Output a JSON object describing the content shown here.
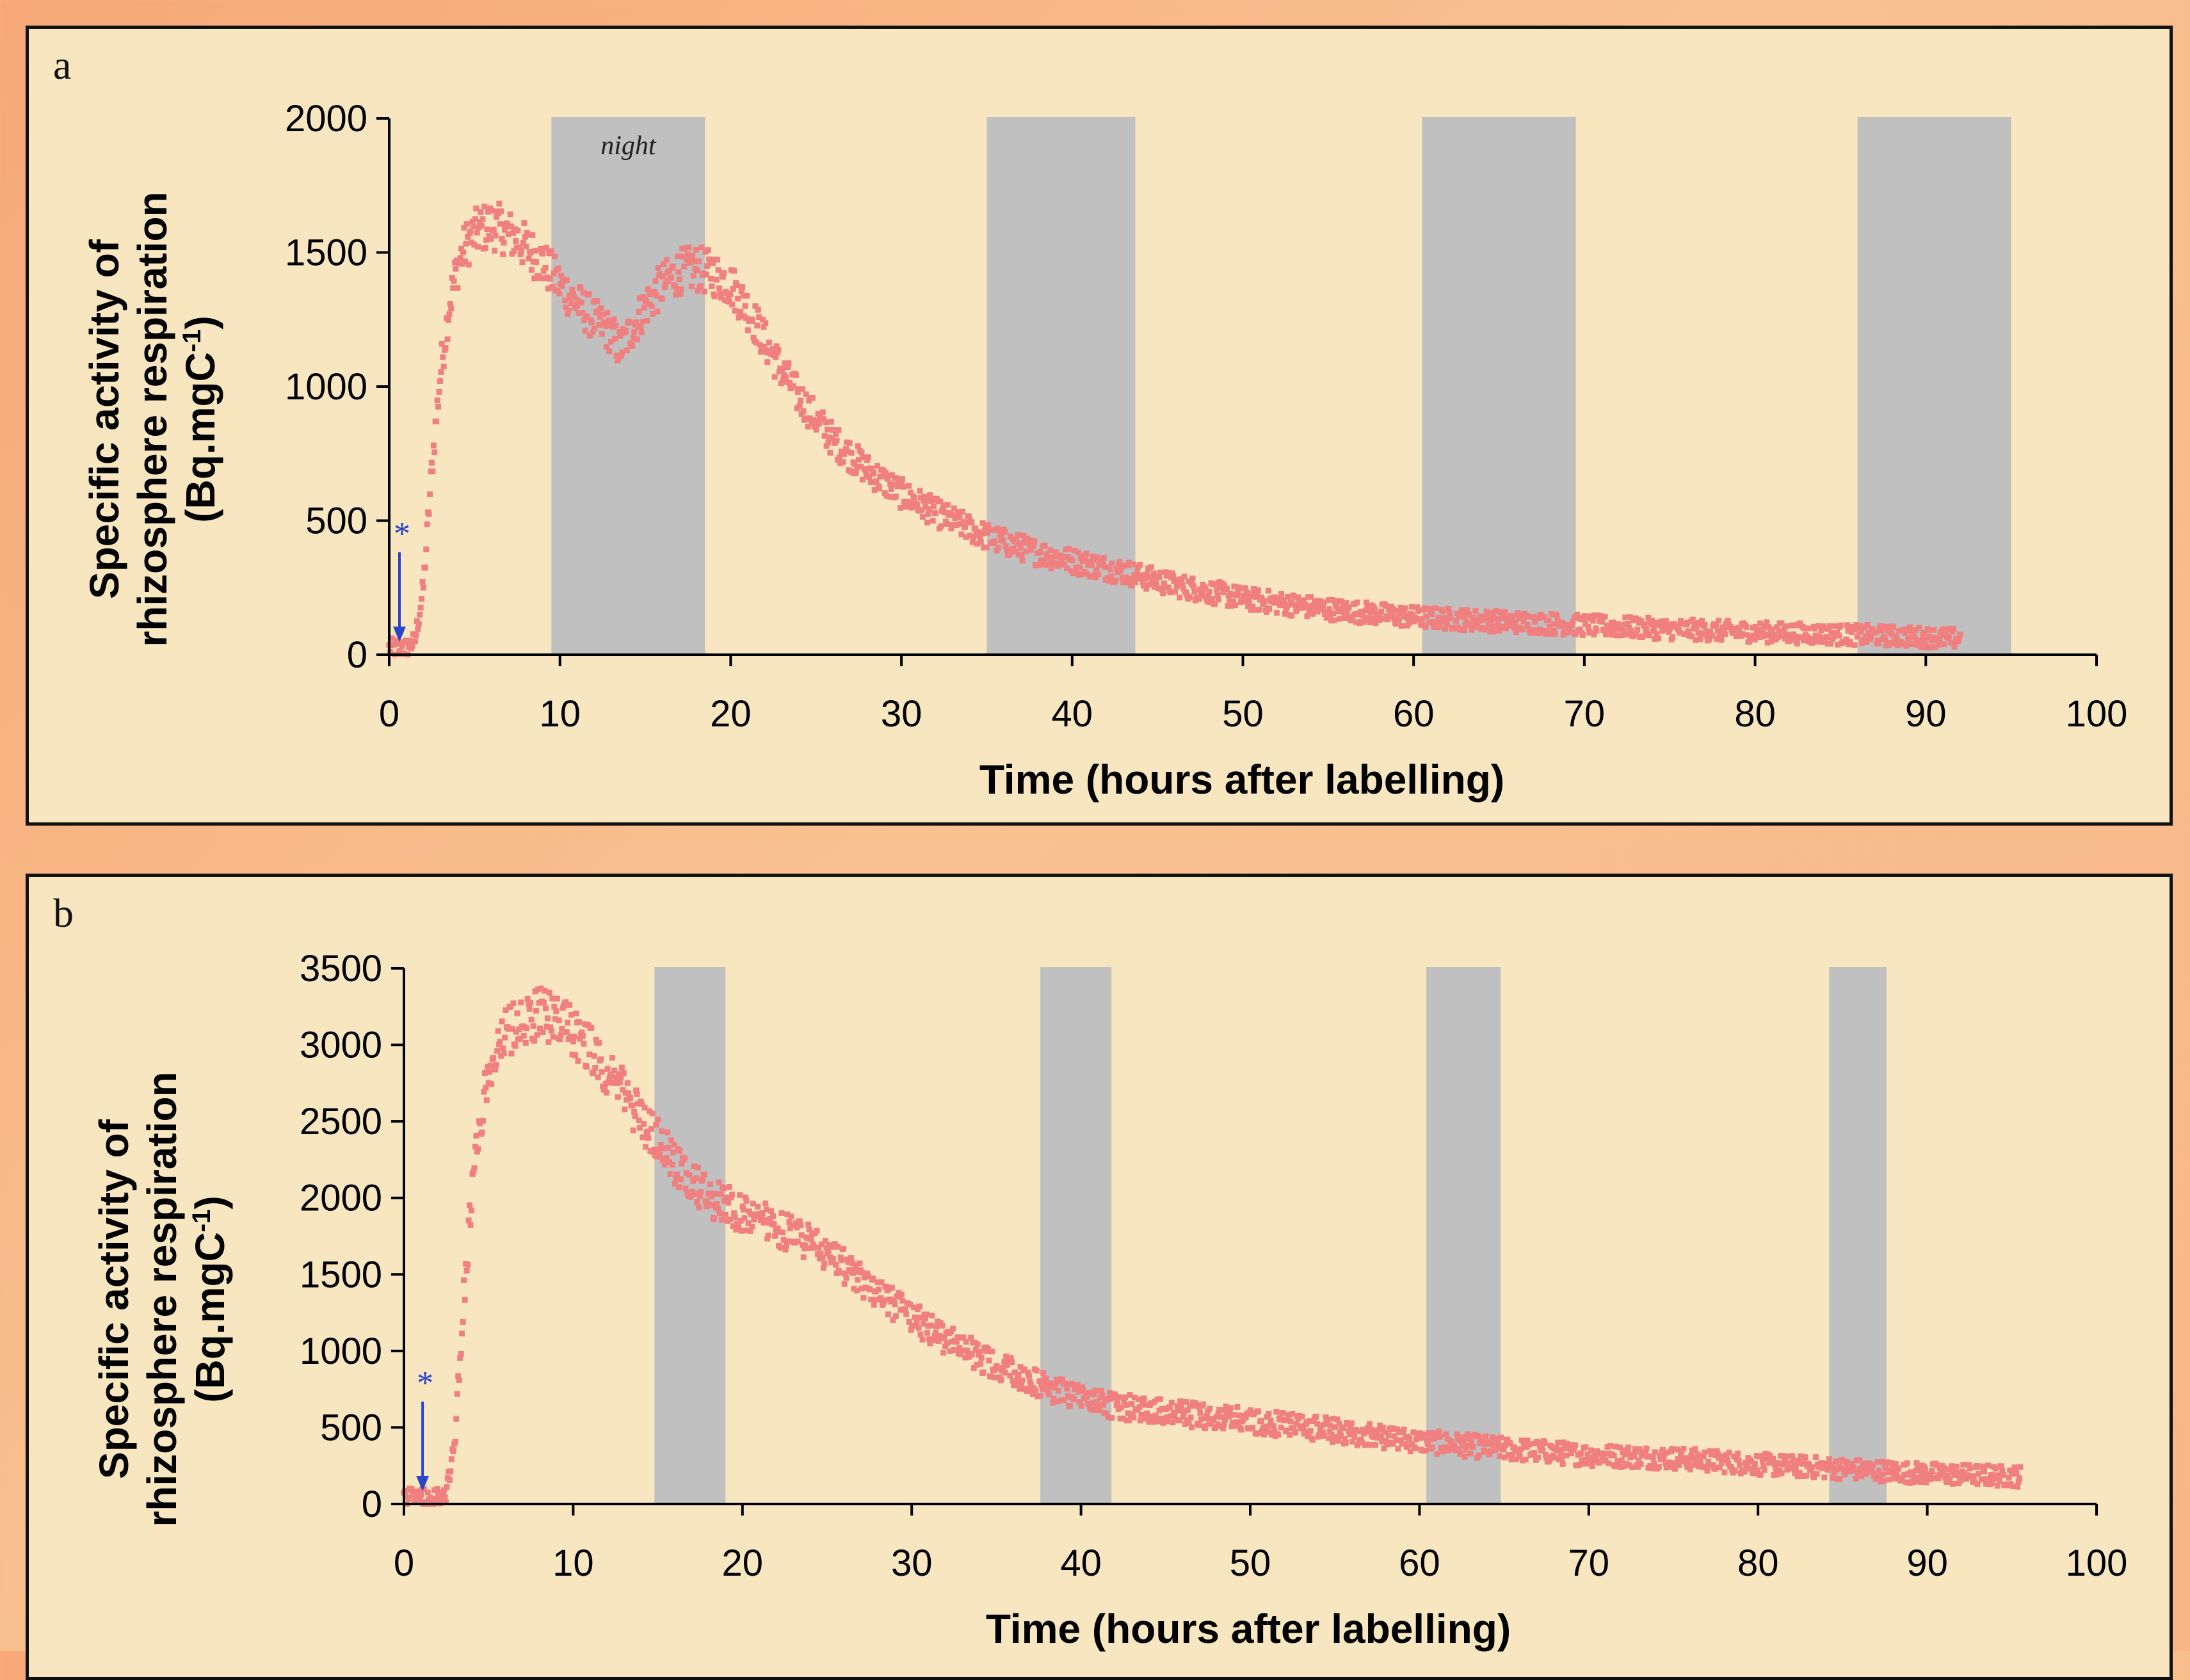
{
  "colors": {
    "points": "#f08080",
    "night_band": "#c0c0c0",
    "axis": "#000000",
    "marker": "#2a45c8",
    "panel_bg": "#f8e6c0"
  },
  "chart_data": [
    {
      "type": "scatter",
      "panel_label": "a",
      "xlabel": "Time (hours after labelling)",
      "ylabel_line1": "Specific activity of",
      "ylabel_line2": "rhizosphere respiration",
      "ylabel_unit_prefix": "(Bq.mgC",
      "ylabel_unit_sup": "-1",
      "ylabel_unit_suffix": ")",
      "xlim": [
        0,
        100
      ],
      "ylim": [
        0,
        2000
      ],
      "x_ticks": [
        "0",
        "10",
        "20",
        "30",
        "40",
        "50",
        "60",
        "70",
        "80",
        "90",
        "100"
      ],
      "y_ticks": [
        "0",
        "500",
        "1000",
        "1500",
        "2000"
      ],
      "night_label": "night",
      "marker_label": "*",
      "marker_x": 0.3,
      "night_bands": [
        [
          9.5,
          18.5
        ],
        [
          35,
          43.7
        ],
        [
          60.5,
          69.5
        ],
        [
          86,
          95
        ]
      ],
      "series": [
        {
          "x": [
            0,
            1,
            1.5,
            2,
            2.5,
            3,
            3.5,
            4,
            4.5,
            5,
            5.5,
            6,
            6.5,
            7,
            7.5,
            8,
            9,
            10,
            11,
            12,
            13,
            13.5,
            14,
            15,
            16,
            17,
            18,
            19,
            20,
            21,
            22,
            23,
            24,
            25,
            26,
            28,
            30,
            32,
            35,
            38,
            40,
            43,
            46,
            50,
            55,
            60,
            65,
            70,
            75,
            80,
            85,
            88,
            90,
            92
          ],
          "y": [
            25,
            25,
            50,
            250,
            700,
            1050,
            1300,
            1450,
            1530,
            1570,
            1590,
            1600,
            1590,
            1570,
            1550,
            1520,
            1460,
            1380,
            1310,
            1250,
            1200,
            1140,
            1190,
            1300,
            1380,
            1430,
            1440,
            1420,
            1380,
            1290,
            1170,
            1060,
            960,
            880,
            800,
            690,
            600,
            530,
            440,
            380,
            350,
            310,
            260,
            210,
            170,
            140,
            125,
            110,
            95,
            85,
            75,
            70,
            65,
            60
          ]
        }
      ]
    },
    {
      "type": "scatter",
      "panel_label": "b",
      "xlabel": "Time (hours after labelling)",
      "ylabel_line1": "Specific activity of",
      "ylabel_line2": "rhizosphere respiration",
      "ylabel_unit_prefix": "(Bq.mgC",
      "ylabel_unit_sup": "-1",
      "ylabel_unit_suffix": ")",
      "xlim": [
        0,
        100
      ],
      "ylim": [
        0,
        3500
      ],
      "x_ticks": [
        "0",
        "10",
        "20",
        "30",
        "40",
        "50",
        "60",
        "70",
        "80",
        "90",
        "100"
      ],
      "y_ticks": [
        "0",
        "500",
        "1000",
        "1500",
        "2000",
        "2500",
        "3000",
        "3500"
      ],
      "marker_label": "*",
      "marker_x": 0.8,
      "night_bands": [
        [
          14.8,
          19
        ],
        [
          37.6,
          41.8
        ],
        [
          60.4,
          64.8
        ],
        [
          84.2,
          87.6
        ]
      ],
      "series": [
        {
          "x": [
            0,
            1,
            2,
            2.5,
            3,
            3.5,
            4,
            4.5,
            5,
            5.5,
            6,
            6.5,
            7,
            7.5,
            8,
            9,
            10,
            11,
            12,
            13,
            14,
            15,
            16,
            17,
            18,
            20,
            22,
            24,
            26,
            28,
            30,
            32,
            34,
            36,
            38,
            40,
            42,
            45,
            48,
            50,
            55,
            60,
            65,
            70,
            75,
            80,
            85,
            90,
            95.5
          ],
          "y": [
            40,
            40,
            40,
            80,
            400,
            1300,
            2000,
            2500,
            2800,
            2960,
            3060,
            3130,
            3170,
            3190,
            3200,
            3160,
            3080,
            2960,
            2830,
            2680,
            2520,
            2370,
            2230,
            2110,
            2010,
            1900,
            1810,
            1700,
            1550,
            1370,
            1220,
            1080,
            960,
            860,
            760,
            690,
            640,
            600,
            570,
            540,
            480,
            410,
            360,
            320,
            300,
            260,
            230,
            200,
            180
          ]
        }
      ]
    }
  ]
}
